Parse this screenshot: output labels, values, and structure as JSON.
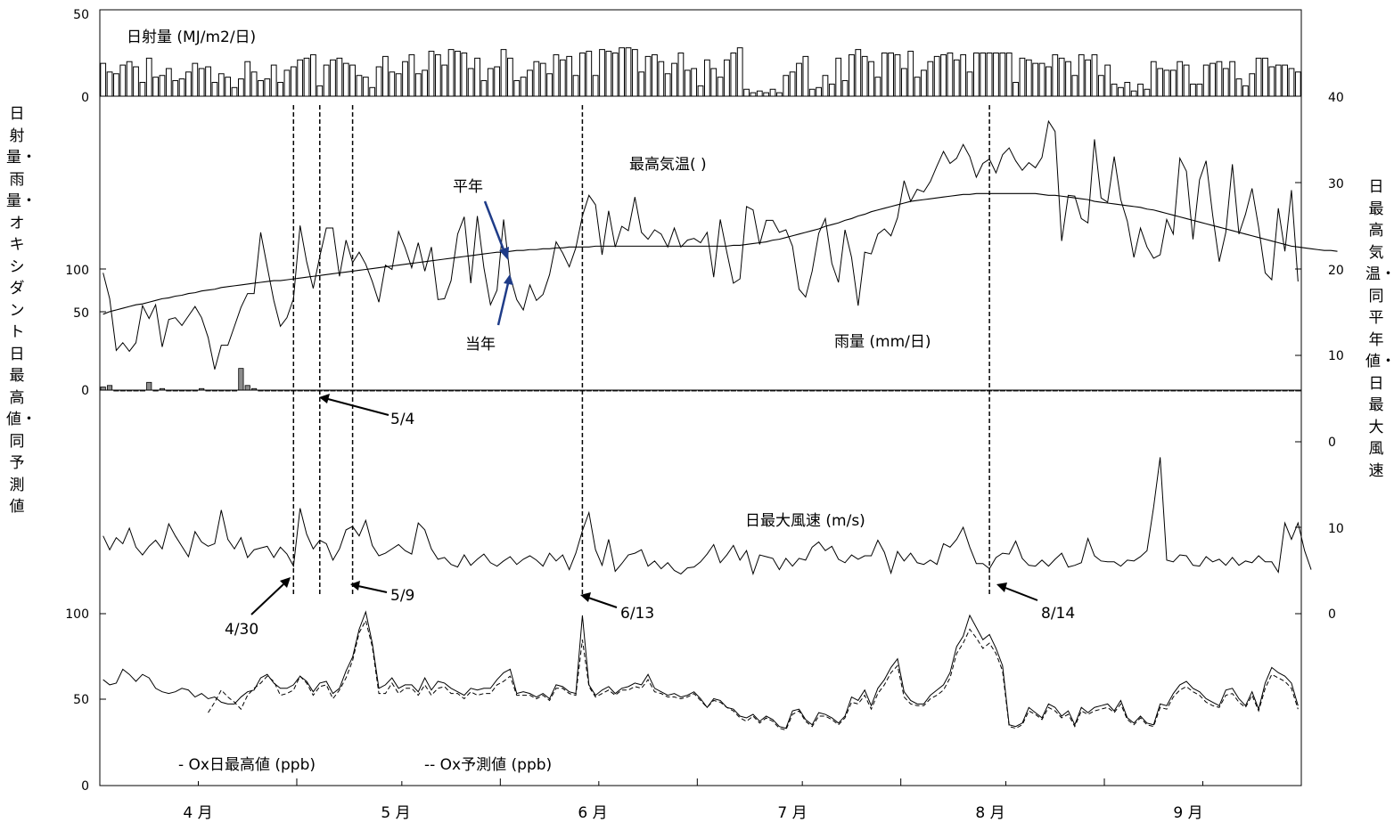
{
  "chart_data": {
    "type": "line",
    "x_months": [
      "4 月",
      "5 月",
      "6 月",
      "7 月",
      "8 月",
      "9 月"
    ],
    "left_axis_title": "日射量・雨量・オキシダント日最高値・同予測値",
    "right_axis_title": "日最高気温・同平年値・日最大風速",
    "left_axis_ticks": {
      "solar": [
        "50",
        "0"
      ],
      "temperature": [
        "100"
      ],
      "rain": [
        "50",
        "0"
      ],
      "ox": [
        "100",
        "50",
        "0"
      ]
    },
    "right_axis_ticks": {
      "temperature": [
        "40",
        "30",
        "20",
        "10",
        "0"
      ],
      "wind": [
        "10",
        "0"
      ]
    },
    "panel_labels": {
      "solar": "日射量 (MJ/m2/日)",
      "temperature": "最高気温( )",
      "normal": "平年",
      "current": "当年",
      "rain": "雨量 (mm/日)",
      "wind": "日最大風速 (m/s)"
    },
    "legend": {
      "ox_max": "- Ox日最高値 (ppb)",
      "ox_pred": "-- Ox予測値 (ppb)"
    },
    "event_dates": [
      "4/30",
      "5/4",
      "5/9",
      "6/13",
      "8/14"
    ],
    "event_day_index": [
      29,
      33,
      38,
      73,
      135
    ],
    "day_count": 183,
    "solar": [
      19,
      14,
      13,
      18,
      20,
      17,
      8,
      22,
      11,
      12,
      16,
      9,
      10,
      14,
      19,
      16,
      17,
      8,
      13,
      11,
      5,
      10,
      20,
      14,
      9,
      10,
      18,
      8,
      15,
      17,
      21,
      22,
      24,
      6,
      18,
      21,
      22,
      19,
      18,
      12,
      11,
      5,
      17,
      23,
      14,
      13,
      20,
      24,
      13,
      15,
      26,
      24,
      18,
      27,
      26,
      25,
      16,
      22,
      9,
      16,
      17,
      27,
      22,
      9,
      11,
      15,
      20,
      19,
      13,
      24,
      21,
      23,
      12,
      25,
      26,
      12,
      27,
      26,
      25,
      28,
      28,
      27,
      14,
      23,
      24,
      20,
      13,
      19,
      25,
      15,
      16,
      6,
      21,
      16,
      11,
      21,
      25,
      28,
      4,
      2,
      3,
      2,
      4,
      2,
      12,
      14,
      19,
      23,
      4,
      5,
      12,
      7,
      22,
      9,
      24,
      27,
      23,
      20,
      11,
      25,
      25,
      24,
      16,
      26,
      11,
      15,
      20,
      23,
      24,
      25,
      21,
      24,
      14,
      25,
      25,
      25,
      25,
      25,
      25,
      8,
      22,
      21,
      19,
      19,
      17,
      24,
      22,
      20,
      12,
      24,
      21,
      24,
      12,
      18,
      7,
      5,
      8,
      3,
      7,
      4,
      20,
      16,
      15,
      15,
      20,
      18,
      7,
      7,
      18,
      19,
      20,
      16,
      20,
      10,
      6,
      13,
      22,
      22,
      17,
      18,
      18,
      16,
      14
    ],
    "tmax": [
      19.6,
      16.6,
      10.6,
      11.5,
      10.5,
      11.5,
      15.8,
      14.3,
      15.9,
      11.0,
      14.2,
      14.4,
      13.5,
      14.6,
      15.7,
      14.4,
      12.1,
      8.4,
      11.2,
      11.2,
      13.4,
      15.6,
      17.2,
      17.2,
      24.3,
      20.3,
      16.4,
      13.4,
      14.4,
      16.6,
      25.1,
      20.9,
      17.8,
      21.5,
      24.8,
      24.8,
      19.2,
      23.4,
      20.8,
      22.0,
      20.6,
      18.6,
      16.2,
      20.5,
      20.0,
      24.4,
      22.5,
      20.2,
      23.1,
      19.8,
      22.6,
      16.5,
      16.6,
      18.7,
      24.1,
      26.1,
      18.4,
      26.2,
      20.2,
      15.9,
      17.6,
      25.8,
      19.2,
      16.5,
      15.3,
      18.2,
      16.4,
      17.1,
      19.4,
      23.2,
      21.9,
      20.3,
      22.5,
      26.2,
      28.6,
      27.5,
      21.7,
      26.8,
      22.6,
      25.0,
      24.5,
      28.4,
      24.3,
      23.5,
      24.6,
      24.1,
      22.6,
      24.8,
      22.6,
      23.4,
      23.6,
      23.1,
      24.3,
      19.1,
      25.8,
      22.0,
      18.4,
      18.9,
      27.3,
      26.9,
      22.9,
      25.7,
      25.7,
      24.3,
      24.6,
      22.7,
      17.7,
      16.8,
      19.8,
      24.2,
      25.9,
      20.7,
      18.5,
      24.6,
      21.4,
      15.8,
      22.0,
      21.8,
      24.1,
      24.7,
      23.9,
      26.0,
      30.3,
      27.9,
      29.3,
      29.0,
      30.2,
      32.0,
      33.7,
      32.3,
      32.9,
      34.5,
      33.1,
      30.7,
      32.3,
      32.8,
      31.2,
      33.3,
      34.1,
      32.6,
      31.5,
      32.4,
      31.8,
      33.0,
      37.2,
      36.0,
      23.3,
      28.6,
      28.5,
      25.9,
      25.4,
      35.1,
      28.3,
      27.8,
      33.1,
      28.1,
      25.6,
      21.4,
      24.8,
      22.6,
      21.3,
      21.7,
      25.8,
      24.1,
      32.9,
      31.4,
      23.5,
      30.4,
      32.6,
      26.3,
      20.9,
      24.3,
      32.2,
      24.1,
      26.4,
      29.4,
      24.9,
      19.6,
      18.8,
      27.1,
      22.1,
      29.2,
      18.6
    ],
    "tnormal": [
      14.8,
      15.1,
      15.3,
      15.5,
      15.7,
      15.9,
      16.0,
      16.2,
      16.4,
      16.6,
      16.7,
      16.9,
      17.0,
      17.2,
      17.3,
      17.5,
      17.6,
      17.7,
      17.9,
      18.0,
      18.1,
      18.2,
      18.3,
      18.4,
      18.5,
      18.6,
      18.7,
      18.7,
      18.8,
      18.9,
      19.0,
      19.1,
      19.2,
      19.3,
      19.4,
      19.5,
      19.6,
      19.7,
      19.8,
      19.9,
      20.0,
      20.1,
      20.2,
      20.3,
      20.4,
      20.5,
      20.6,
      20.7,
      20.8,
      20.9,
      21.0,
      21.1,
      21.2,
      21.3,
      21.4,
      21.5,
      21.6,
      21.7,
      21.8,
      21.9,
      22.0,
      22.0,
      22.1,
      22.2,
      22.2,
      22.3,
      22.3,
      22.4,
      22.4,
      22.5,
      22.5,
      22.6,
      22.6,
      22.6,
      22.6,
      22.7,
      22.7,
      22.7,
      22.7,
      22.7,
      22.7,
      22.7,
      22.7,
      22.7,
      22.7,
      22.7,
      22.7,
      22.7,
      22.7,
      22.7,
      22.7,
      22.7,
      22.7,
      22.7,
      22.7,
      22.7,
      22.8,
      22.8,
      22.9,
      23.0,
      23.1,
      23.2,
      23.4,
      23.5,
      23.7,
      23.9,
      24.1,
      24.3,
      24.5,
      24.7,
      25.0,
      25.2,
      25.4,
      25.7,
      25.9,
      26.2,
      26.4,
      26.7,
      26.9,
      27.1,
      27.3,
      27.5,
      27.7,
      27.9,
      28.0,
      28.1,
      28.2,
      28.3,
      28.4,
      28.5,
      28.6,
      28.7,
      28.7,
      28.8,
      28.8,
      28.8,
      28.8,
      28.8,
      28.8,
      28.8,
      28.8,
      28.8,
      28.8,
      28.7,
      28.6,
      28.6,
      28.5,
      28.4,
      28.3,
      28.2,
      28.1,
      27.9,
      27.8,
      27.7,
      27.6,
      27.5,
      27.4,
      27.3,
      27.2,
      27.0,
      26.9,
      26.7,
      26.5,
      26.3,
      26.1,
      25.9,
      25.7,
      25.5,
      25.3,
      25.1,
      24.9,
      24.7,
      24.5,
      24.3,
      24.1,
      23.9,
      23.7,
      23.5,
      23.3,
      23.1,
      22.9,
      22.7,
      22.6,
      22.5,
      22.4,
      22.3,
      22.2,
      22.2,
      22.1
    ],
    "rain": [
      2,
      3,
      0,
      0,
      0,
      0,
      0,
      5,
      0,
      1,
      0,
      0,
      0,
      0,
      0,
      1,
      0,
      0,
      0,
      0,
      0,
      14,
      3,
      1,
      0,
      0,
      0,
      0,
      0,
      0,
      0,
      0,
      0,
      0,
      0,
      0,
      0,
      0,
      0,
      0,
      0,
      0,
      0,
      0,
      0,
      0,
      0,
      0,
      0,
      0,
      0,
      0,
      0,
      0,
      0,
      0,
      0,
      0,
      0,
      0,
      0,
      0,
      0,
      0,
      0,
      0,
      0,
      0,
      0,
      0,
      0,
      0,
      0,
      0,
      0,
      0,
      0,
      0,
      0,
      0,
      0,
      0,
      0,
      0,
      0,
      0,
      0,
      0,
      0,
      0,
      0,
      0,
      0,
      0,
      0,
      0,
      0,
      0,
      0,
      0,
      0,
      0,
      0,
      0,
      0,
      0,
      0,
      0,
      0,
      0,
      0,
      0,
      0,
      0,
      0,
      0,
      0,
      0,
      0,
      0,
      0,
      0,
      0,
      0,
      0,
      0,
      0,
      0,
      0,
      0,
      0,
      0,
      0,
      0,
      0,
      0,
      0,
      0,
      0,
      0,
      0,
      0,
      0,
      0,
      0,
      0,
      0,
      0,
      0,
      0,
      0,
      0,
      0,
      0,
      0,
      0,
      0,
      0,
      0,
      0,
      0,
      0,
      0,
      0,
      0,
      0,
      0,
      0,
      0,
      0,
      0,
      0,
      0,
      0,
      0,
      0,
      0,
      0,
      0,
      0,
      0,
      0,
      0
    ],
    "wind": [
      9.0,
      7.4,
      8.8,
      8.1,
      9.9,
      7.7,
      6.8,
      7.8,
      8.5,
      7.5,
      10.4,
      9.0,
      7.8,
      6.6,
      9.5,
      8.3,
      7.8,
      8.1,
      12.0,
      8.6,
      7.5,
      8.8,
      6.5,
      7.4,
      7.6,
      7.8,
      6.5,
      7.7,
      6.9,
      5.5,
      12.2,
      9.2,
      7.5,
      8.5,
      8.1,
      6.2,
      7.5,
      9.7,
      10.1,
      9.0,
      10.8,
      7.9,
      6.7,
      7.0,
      7.5,
      8.0,
      7.3,
      6.9,
      10.5,
      9.7,
      7.5,
      6.3,
      6.5,
      5.7,
      5.4,
      6.8,
      5.6,
      6.3,
      6.9,
      5.9,
      5.5,
      6.1,
      6.6,
      5.7,
      6.3,
      6.7,
      6.2,
      5.5,
      7.0,
      6.1,
      6.8,
      5.1,
      7.0,
      9.6,
      11.7,
      7.4,
      5.6,
      8.6,
      4.9,
      5.8,
      6.8,
      7.0,
      7.4,
      5.5,
      6.1,
      5.2,
      5.9,
      5.0,
      4.6,
      5.3,
      5.4,
      6.0,
      6.9,
      8.0,
      5.9,
      6.8,
      7.9,
      6.2,
      7.3,
      4.6,
      6.8,
      6.6,
      6.4,
      5.1,
      6.4,
      5.5,
      6.4,
      6.2,
      7.7,
      8.3,
      7.3,
      7.8,
      6.3,
      5.9,
      6.8,
      6.3,
      6.7,
      6.7,
      8.5,
      7.1,
      4.7,
      7.2,
      6.1,
      7.0,
      5.9,
      5.7,
      6.2,
      5.7,
      8.1,
      7.7,
      8.6,
      10.0,
      7.7,
      5.8,
      5.8,
      5.2,
      6.5,
      7.0,
      6.9,
      8.4,
      6.4,
      5.6,
      5.5,
      6.2,
      5.5,
      6.3,
      7.0,
      5.4,
      5.6,
      5.9,
      8.7,
      6.7,
      6.1,
      6.0,
      6.0,
      5.5,
      6.2,
      6.1,
      6.6,
      7.3,
      12.3,
      18.1,
      6.2,
      6.0,
      6.8,
      6.7,
      5.6,
      5.5,
      6.6,
      6.0,
      6.3,
      5.6,
      6.5,
      5.6,
      6.1,
      5.9,
      6.7,
      6.0,
      6.0,
      4.8,
      10.5,
      8.6,
      10.5,
      7.3,
      5.1
    ],
    "ox_max": [
      61,
      58,
      59,
      67,
      64,
      60,
      64,
      62,
      56,
      54,
      53,
      54,
      56,
      55,
      51,
      53,
      50,
      51,
      48,
      47,
      47,
      51,
      54,
      55,
      62,
      64,
      59,
      56,
      56,
      58,
      63,
      60,
      54,
      59,
      60,
      53,
      56,
      66,
      74,
      90,
      100,
      82,
      56,
      58,
      62,
      56,
      58,
      58,
      54,
      62,
      55,
      60,
      59,
      56,
      54,
      52,
      56,
      55,
      56,
      56,
      61,
      65,
      67,
      53,
      54,
      53,
      51,
      53,
      50,
      58,
      57,
      54,
      53,
      98,
      58,
      52,
      55,
      57,
      53,
      56,
      57,
      59,
      58,
      64,
      56,
      54,
      52,
      53,
      51,
      52,
      54,
      50,
      45,
      50,
      49,
      45,
      44,
      40,
      39,
      41,
      37,
      40,
      38,
      34,
      33,
      43,
      44,
      38,
      35,
      42,
      41,
      39,
      36,
      40,
      51,
      49,
      55,
      46,
      56,
      61,
      68,
      73,
      54,
      49,
      47,
      47,
      52,
      55,
      58,
      65,
      80,
      86,
      98,
      91,
      84,
      87,
      79,
      69,
      35,
      34,
      36,
      45,
      42,
      39,
      47,
      45,
      40,
      43,
      35,
      45,
      42,
      45,
      46,
      47,
      43,
      49,
      39,
      36,
      40,
      36,
      35,
      47,
      46,
      53,
      58,
      60,
      56,
      54,
      50,
      48,
      46,
      55,
      56,
      50,
      46,
      54,
      44,
      59,
      68,
      65,
      63,
      59,
      46
    ],
    "ox_pred": [
      null,
      null,
      null,
      null,
      null,
      null,
      null,
      null,
      null,
      null,
      null,
      null,
      null,
      null,
      null,
      null,
      42,
      48,
      55,
      51,
      48,
      44,
      52,
      56,
      59,
      63,
      60,
      52,
      53,
      55,
      63,
      59,
      52,
      57,
      58,
      50,
      55,
      62,
      72,
      88,
      95,
      80,
      53,
      53,
      59,
      53,
      56,
      56,
      52,
      58,
      52,
      56,
      57,
      53,
      53,
      50,
      54,
      52,
      53,
      53,
      58,
      60,
      63,
      52,
      52,
      52,
      50,
      52,
      49,
      56,
      56,
      53,
      52,
      84,
      57,
      51,
      53,
      55,
      52,
      55,
      55,
      57,
      56,
      61,
      54,
      53,
      51,
      51,
      50,
      51,
      53,
      49,
      45,
      49,
      48,
      45,
      43,
      39,
      37,
      40,
      36,
      39,
      37,
      33,
      32,
      41,
      43,
      37,
      34,
      40,
      40,
      38,
      35,
      39,
      48,
      47,
      52,
      44,
      53,
      58,
      65,
      69,
      51,
      47,
      46,
      46,
      50,
      52,
      55,
      62,
      76,
      82,
      90,
      85,
      79,
      82,
      76,
      66,
      34,
      33,
      35,
      43,
      41,
      38,
      45,
      43,
      39,
      41,
      34,
      43,
      41,
      43,
      44,
      45,
      42,
      47,
      38,
      35,
      39,
      35,
      34,
      45,
      44,
      51,
      55,
      57,
      54,
      52,
      48,
      46,
      45,
      52,
      53,
      48,
      45,
      52,
      43,
      56,
      64,
      62,
      60,
      56,
      44
    ]
  }
}
